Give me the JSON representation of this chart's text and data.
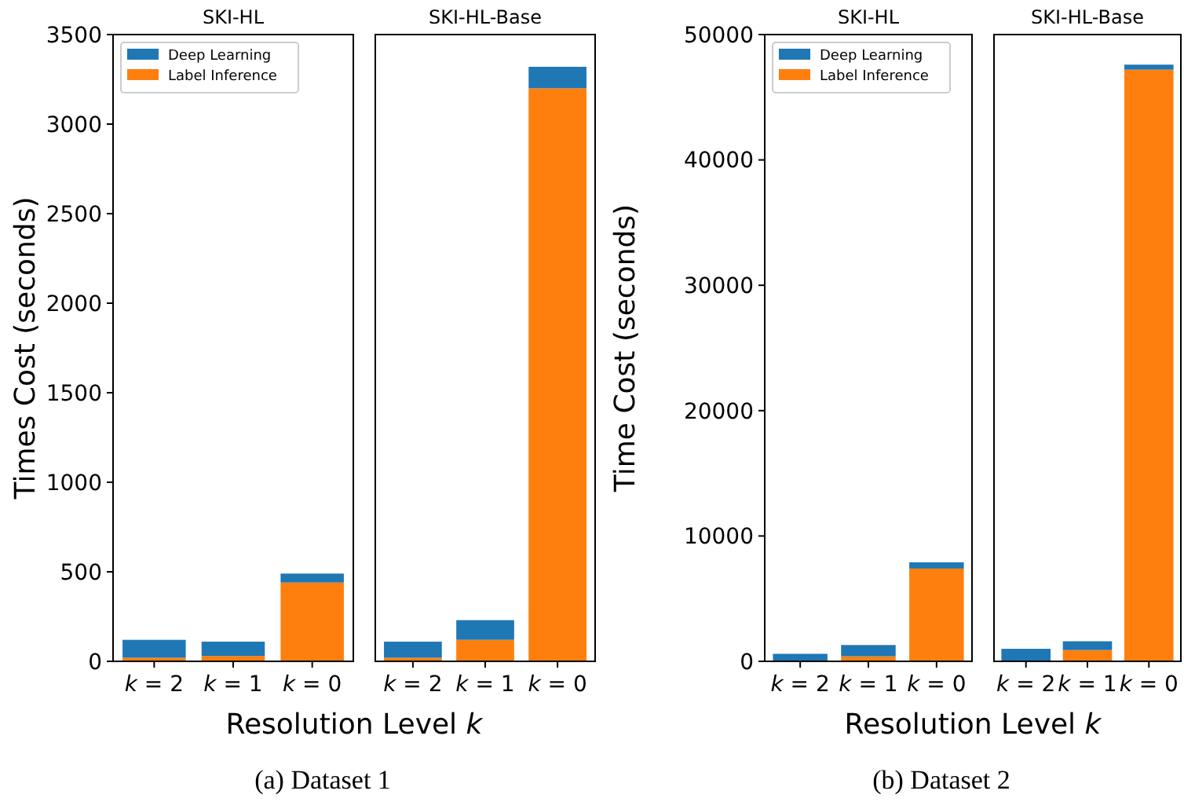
{
  "chart_data": [
    {
      "type": "bar",
      "title": "SKI-HL",
      "ylabel": "Times Cost (seconds)",
      "xlabel": "Resolution Level k",
      "annotations": [
        "(a) Dataset 1"
      ],
      "categories": [
        "k = 2",
        "k = 1",
        "k = 0"
      ],
      "stacked": true,
      "ylim": [
        0,
        3500
      ],
      "yticks": [
        0,
        500,
        1000,
        1500,
        2000,
        2500,
        3000,
        3500
      ],
      "legend": "top left",
      "series": [
        {
          "name": "Label Inference",
          "color": "#ff7f0e",
          "values": [
            20,
            30,
            440
          ]
        },
        {
          "name": "Deep Learning",
          "color": "#1f77b4",
          "values": [
            100,
            80,
            50
          ]
        }
      ]
    },
    {
      "type": "bar",
      "title": "SKI-HL-Base",
      "categories": [
        "k = 2",
        "k = 1",
        "k = 0"
      ],
      "stacked": true,
      "ylim": [
        0,
        3500
      ],
      "tick_labels": "x",
      "series": [
        {
          "color": "#ff7f0e",
          "values": [
            20,
            120,
            3200
          ]
        },
        {
          "color": "#1f77b4",
          "values": [
            90,
            110,
            120
          ]
        }
      ]
    },
    {
      "type": "bar",
      "title": "SKI-HL",
      "ylabel": "Time Cost (seconds)",
      "xlabel": "Resolution Level k",
      "annotations": [
        "(b) Dataset 2"
      ],
      "categories": [
        "k = 2",
        "k = 1",
        "k = 0"
      ],
      "stacked": true,
      "ylim": [
        0,
        50000
      ],
      "yticks": [
        0,
        10000,
        20000,
        30000,
        40000,
        50000
      ],
      "legend": "top left",
      "series": [
        {
          "name": "Label Inference",
          "color": "#ff7f0e",
          "values": [
            0,
            400,
            7400
          ]
        },
        {
          "name": "Deep Learning",
          "color": "#1f77b4",
          "values": [
            600,
            900,
            500
          ]
        }
      ]
    },
    {
      "type": "bar",
      "title": "SKI-HL-Base",
      "categories": [
        "k = 2",
        "k = 1",
        "k = 0"
      ],
      "stacked": true,
      "ylim": [
        0,
        50000
      ],
      "tick_labels": "x",
      "series": [
        {
          "color": "#ff7f0e",
          "values": [
            0,
            900,
            47200
          ]
        },
        {
          "color": "#1f77b4",
          "values": [
            1000,
            700,
            400
          ]
        }
      ]
    }
  ]
}
